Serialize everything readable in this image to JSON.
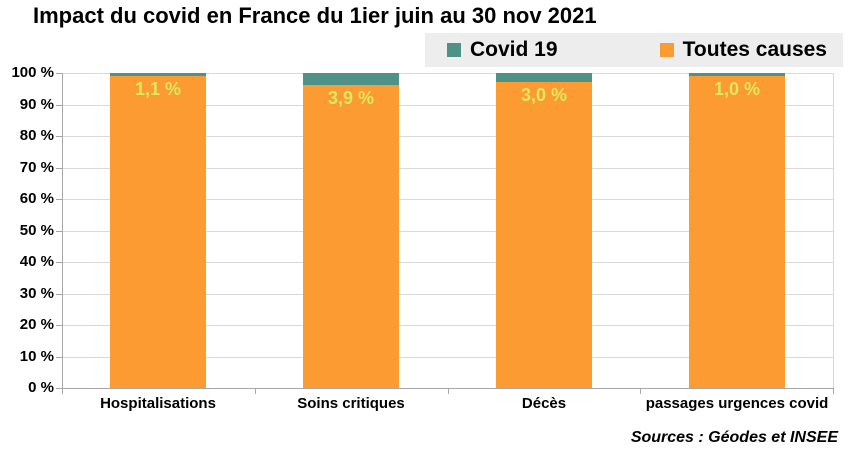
{
  "title": "Impact du covid en France du 1ier juin au 30 nov 2021",
  "source_note": "Sources : Géodes et INSEE",
  "legend": {
    "items": [
      {
        "label": "Covid 19",
        "color": "#4E9187"
      },
      {
        "label": "Toutes causes",
        "color": "#FB9B32"
      }
    ]
  },
  "chart_data": {
    "type": "bar",
    "variant": "stacked-100",
    "title": "Impact du covid en France du 1ier juin au 30 nov 2021",
    "categories": [
      "Hospitalisations",
      "Soins critiques",
      "Décès",
      "passages urgences covid"
    ],
    "series": [
      {
        "name": "Covid 19",
        "color": "#4E9187",
        "values": [
          1.1,
          3.9,
          3.0,
          1.0
        ]
      },
      {
        "name": "Toutes causes",
        "color": "#FB9B32",
        "values": [
          98.9,
          96.1,
          97.0,
          99.0
        ]
      }
    ],
    "data_labels": {
      "series": "Covid 19",
      "texts": [
        "1,1 %",
        "3,9 %",
        "3,0 %",
        "1,0 %"
      ],
      "color": "#DCE85E"
    },
    "ylim": [
      0,
      100
    ],
    "ytick_step": 10,
    "ytick_labels": [
      "0 %",
      "10 %",
      "20 %",
      "30 %",
      "40 %",
      "50 %",
      "60 %",
      "70 %",
      "80 %",
      "90 %",
      "100 %"
    ],
    "grid": true,
    "legend_position": "top-right",
    "colors": {
      "gridline": "#D9D9D9",
      "axis": "#A6A6A6",
      "legend_bg": "#EDEDED",
      "background": "#FFFFFF"
    }
  }
}
